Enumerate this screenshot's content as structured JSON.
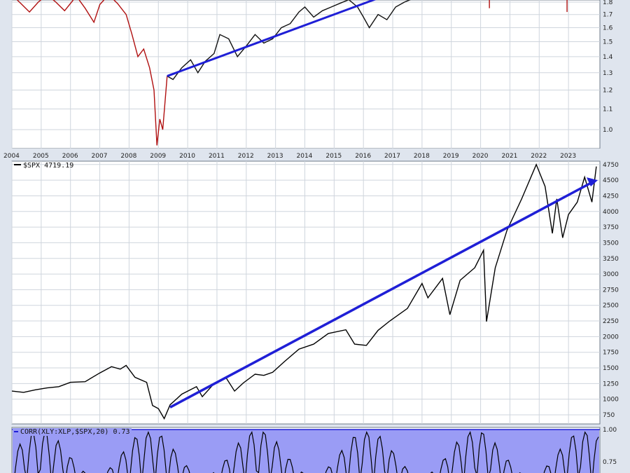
{
  "chart_data": [
    {
      "type": "line",
      "panel": "ratio (XLY:XLP)",
      "x_ticks": [
        "2004",
        "2005",
        "2006",
        "2007",
        "2008",
        "2009",
        "2010",
        "2011",
        "2012",
        "2013",
        "2014",
        "2015",
        "2016",
        "2017",
        "2018",
        "2019",
        "2020",
        "2021",
        "2022",
        "2023"
      ],
      "y_ticks": [
        "1.0",
        "1.1",
        "1.2",
        "1.3",
        "1.4",
        "1.5",
        "1.6",
        "1.7",
        "1.8"
      ],
      "scale": "log",
      "series": [
        {
          "color": "#b01010",
          "points": [
            [
              2004.0,
              1.86
            ],
            [
              2004.3,
              1.79
            ],
            [
              2004.6,
              1.72
            ],
            [
              2004.9,
              1.8
            ],
            [
              2005.2,
              1.86
            ],
            [
              2005.5,
              1.8
            ],
            [
              2005.8,
              1.73
            ],
            [
              2006.2,
              1.85
            ],
            [
              2006.5,
              1.75
            ],
            [
              2006.8,
              1.64
            ],
            [
              2007.0,
              1.78
            ],
            [
              2007.3,
              1.86
            ],
            [
              2007.6,
              1.79
            ],
            [
              2007.9,
              1.7
            ],
            [
              2008.1,
              1.55
            ],
            [
              2008.3,
              1.4
            ],
            [
              2008.5,
              1.45
            ],
            [
              2008.7,
              1.33
            ],
            [
              2008.85,
              1.2
            ],
            [
              2008.95,
              0.93
            ],
            [
              2009.05,
              1.05
            ],
            [
              2009.15,
              1.0
            ],
            [
              2009.3,
              1.28
            ]
          ]
        },
        {
          "color": "#111111",
          "points": [
            [
              2009.3,
              1.28
            ],
            [
              2009.5,
              1.26
            ],
            [
              2009.8,
              1.33
            ],
            [
              2010.1,
              1.38
            ],
            [
              2010.35,
              1.3
            ],
            [
              2010.6,
              1.37
            ],
            [
              2010.9,
              1.42
            ],
            [
              2011.1,
              1.55
            ],
            [
              2011.4,
              1.52
            ],
            [
              2011.7,
              1.4
            ],
            [
              2012.0,
              1.47
            ],
            [
              2012.3,
              1.55
            ],
            [
              2012.6,
              1.49
            ],
            [
              2012.9,
              1.52
            ],
            [
              2013.2,
              1.6
            ],
            [
              2013.5,
              1.63
            ],
            [
              2013.8,
              1.72
            ],
            [
              2014.0,
              1.76
            ],
            [
              2014.3,
              1.68
            ],
            [
              2014.6,
              1.73
            ],
            [
              2014.9,
              1.76
            ],
            [
              2015.2,
              1.79
            ],
            [
              2015.5,
              1.82
            ],
            [
              2015.8,
              1.76
            ],
            [
              2016.0,
              1.68
            ],
            [
              2016.2,
              1.6
            ],
            [
              2016.5,
              1.7
            ],
            [
              2016.8,
              1.66
            ],
            [
              2017.1,
              1.76
            ],
            [
              2017.4,
              1.8
            ],
            [
              2017.8,
              1.84
            ]
          ]
        }
      ],
      "trendline": {
        "color": "#1f1fd6",
        "from": [
          2009.3,
          1.28
        ],
        "to": [
          2016.8,
          1.86
        ]
      }
    },
    {
      "type": "line",
      "panel": "price",
      "legend": "$SPX 4719.19",
      "x": [
        "2004",
        "2023"
      ],
      "y_ticks": [
        "750",
        "1000",
        "1250",
        "1500",
        "1750",
        "2000",
        "2250",
        "2500",
        "2750",
        "3000",
        "3250",
        "3500",
        "3750",
        "4000",
        "4250",
        "4500",
        "4750"
      ],
      "ylim": [
        500,
        4850
      ],
      "series": [
        {
          "name": "$SPX",
          "color": "#000000",
          "points": [
            [
              2004.0,
              1130
            ],
            [
              2004.4,
              1110
            ],
            [
              2004.8,
              1150
            ],
            [
              2005.2,
              1180
            ],
            [
              2005.6,
              1200
            ],
            [
              2006.0,
              1270
            ],
            [
              2006.5,
              1280
            ],
            [
              2007.0,
              1420
            ],
            [
              2007.4,
              1520
            ],
            [
              2007.7,
              1480
            ],
            [
              2007.9,
              1540
            ],
            [
              2008.2,
              1350
            ],
            [
              2008.6,
              1270
            ],
            [
              2008.8,
              900
            ],
            [
              2009.0,
              850
            ],
            [
              2009.2,
              690
            ],
            [
              2009.4,
              910
            ],
            [
              2009.8,
              1080
            ],
            [
              2010.3,
              1200
            ],
            [
              2010.5,
              1040
            ],
            [
              2010.9,
              1250
            ],
            [
              2011.3,
              1350
            ],
            [
              2011.6,
              1130
            ],
            [
              2011.9,
              1260
            ],
            [
              2012.3,
              1400
            ],
            [
              2012.6,
              1380
            ],
            [
              2012.9,
              1430
            ],
            [
              2013.3,
              1600
            ],
            [
              2013.8,
              1800
            ],
            [
              2014.3,
              1880
            ],
            [
              2014.8,
              2050
            ],
            [
              2015.4,
              2110
            ],
            [
              2015.7,
              1880
            ],
            [
              2016.1,
              1860
            ],
            [
              2016.5,
              2100
            ],
            [
              2016.9,
              2250
            ],
            [
              2017.5,
              2450
            ],
            [
              2018.0,
              2850
            ],
            [
              2018.2,
              2620
            ],
            [
              2018.7,
              2930
            ],
            [
              2018.95,
              2350
            ],
            [
              2019.3,
              2900
            ],
            [
              2019.8,
              3100
            ],
            [
              2020.1,
              3380
            ],
            [
              2020.2,
              2240
            ],
            [
              2020.5,
              3100
            ],
            [
              2020.9,
              3700
            ],
            [
              2021.4,
              4200
            ],
            [
              2021.9,
              4750
            ],
            [
              2022.2,
              4400
            ],
            [
              2022.45,
              3650
            ],
            [
              2022.6,
              4200
            ],
            [
              2022.8,
              3580
            ],
            [
              2023.0,
              3950
            ],
            [
              2023.3,
              4150
            ],
            [
              2023.55,
              4550
            ],
            [
              2023.8,
              4150
            ],
            [
              2023.95,
              4719
            ]
          ]
        }
      ],
      "trendline": {
        "color": "#1f1fd6",
        "from": [
          2009.4,
          870
        ],
        "to": [
          2024.0,
          4500
        ]
      }
    },
    {
      "type": "area",
      "panel": "correlation",
      "legend": "CORR(XLY:XLP,$SPX,20) 0.73",
      "y_ticks": [
        "1.00",
        "0.75"
      ],
      "fill": "#9a9cf5"
    }
  ]
}
